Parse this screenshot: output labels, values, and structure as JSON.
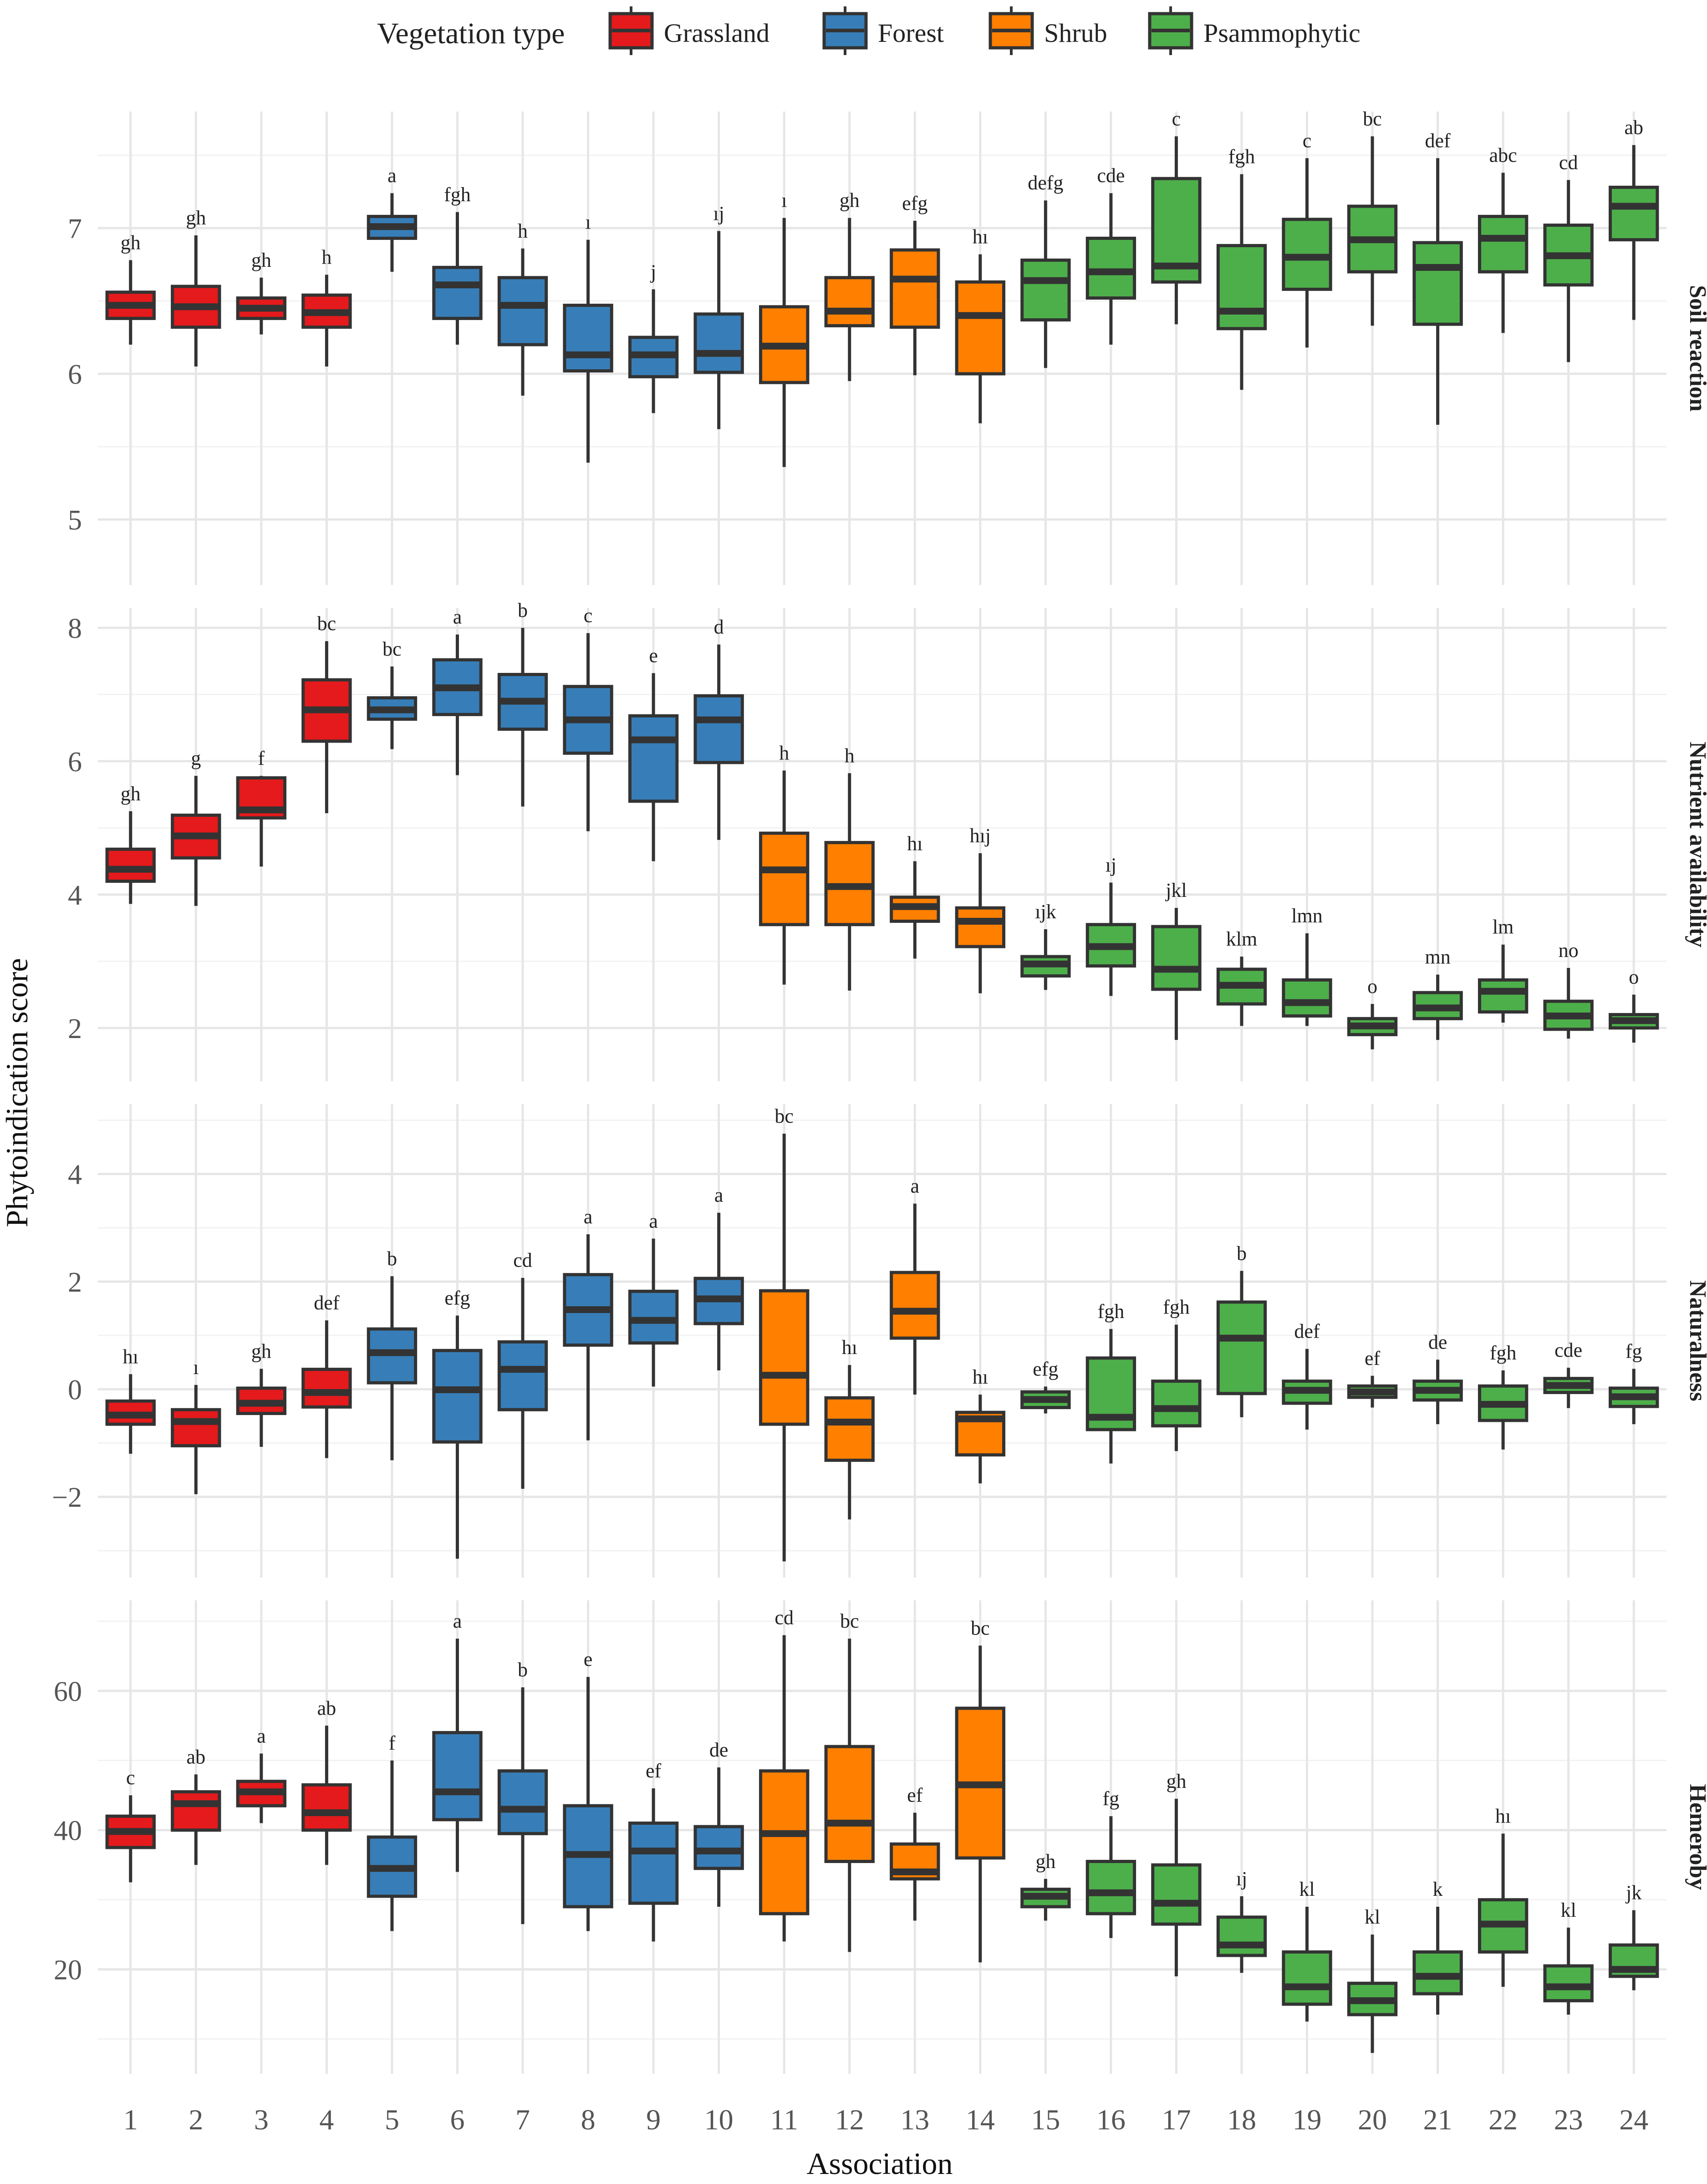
{
  "chart_data": {
    "type": "boxplot",
    "xlabel": "Association",
    "ylabel": "Phytoindication score",
    "categories": [
      "1",
      "2",
      "3",
      "4",
      "5",
      "6",
      "7",
      "8",
      "9",
      "10",
      "11",
      "12",
      "13",
      "14",
      "15",
      "16",
      "17",
      "18",
      "19",
      "20",
      "21",
      "22",
      "23",
      "24"
    ],
    "legend": {
      "title": "Vegetation type",
      "position": "top",
      "entries": [
        {
          "name": "Grassland",
          "color": "#e41a1c"
        },
        {
          "name": "Forest",
          "color": "#377eb8"
        },
        {
          "name": "Shrub",
          "color": "#ff7f00"
        },
        {
          "name": "Psammophytic",
          "color": "#4daf4a"
        }
      ]
    },
    "group_of_category": [
      0,
      0,
      0,
      0,
      1,
      1,
      1,
      1,
      1,
      1,
      2,
      2,
      2,
      2,
      3,
      3,
      3,
      3,
      3,
      3,
      3,
      3,
      3,
      3
    ],
    "panels": [
      {
        "label": "Soil reaction",
        "ylim": [
          4.55,
          7.8
        ],
        "yticks": [
          5,
          6,
          7
        ],
        "boxes": [
          {
            "low": 6.2,
            "q1": 6.38,
            "median": 6.47,
            "q3": 6.56,
            "high": 6.78,
            "letters": "gh"
          },
          {
            "low": 6.05,
            "q1": 6.32,
            "median": 6.46,
            "q3": 6.6,
            "high": 6.95,
            "letters": "gh"
          },
          {
            "low": 6.27,
            "q1": 6.38,
            "median": 6.45,
            "q3": 6.52,
            "high": 6.66,
            "letters": "gh"
          },
          {
            "low": 6.05,
            "q1": 6.32,
            "median": 6.42,
            "q3": 6.54,
            "high": 6.68,
            "letters": "h"
          },
          {
            "low": 6.7,
            "q1": 6.93,
            "median": 7.01,
            "q3": 7.08,
            "high": 7.24,
            "letters": "a"
          },
          {
            "low": 6.2,
            "q1": 6.38,
            "median": 6.61,
            "q3": 6.73,
            "high": 7.11,
            "letters": "fgh"
          },
          {
            "low": 5.85,
            "q1": 6.2,
            "median": 6.47,
            "q3": 6.66,
            "high": 6.86,
            "letters": "h"
          },
          {
            "low": 5.39,
            "q1": 6.02,
            "median": 6.13,
            "q3": 6.47,
            "high": 6.92,
            "letters": "ı"
          },
          {
            "low": 5.73,
            "q1": 5.98,
            "median": 6.13,
            "q3": 6.25,
            "high": 6.58,
            "letters": "j"
          },
          {
            "low": 5.62,
            "q1": 6.01,
            "median": 6.14,
            "q3": 6.41,
            "high": 6.98,
            "letters": "ıj"
          },
          {
            "low": 5.36,
            "q1": 5.94,
            "median": 6.19,
            "q3": 6.46,
            "high": 7.07,
            "letters": "ı"
          },
          {
            "low": 5.95,
            "q1": 6.33,
            "median": 6.43,
            "q3": 6.66,
            "high": 7.07,
            "letters": "gh"
          },
          {
            "low": 5.99,
            "q1": 6.32,
            "median": 6.65,
            "q3": 6.85,
            "high": 7.05,
            "letters": "efg"
          },
          {
            "low": 5.66,
            "q1": 6.0,
            "median": 6.4,
            "q3": 6.63,
            "high": 6.82,
            "letters": "hı"
          },
          {
            "low": 6.04,
            "q1": 6.37,
            "median": 6.64,
            "q3": 6.78,
            "high": 7.19,
            "letters": "defg"
          },
          {
            "low": 6.2,
            "q1": 6.52,
            "median": 6.7,
            "q3": 6.93,
            "high": 7.24,
            "letters": "cde"
          },
          {
            "low": 6.34,
            "q1": 6.63,
            "median": 6.74,
            "q3": 7.34,
            "high": 7.63,
            "letters": "c"
          },
          {
            "low": 5.89,
            "q1": 6.31,
            "median": 6.43,
            "q3": 6.88,
            "high": 7.37,
            "letters": "fgh"
          },
          {
            "low": 6.18,
            "q1": 6.58,
            "median": 6.8,
            "q3": 7.06,
            "high": 7.48,
            "letters": "c"
          },
          {
            "low": 6.33,
            "q1": 6.7,
            "median": 6.92,
            "q3": 7.15,
            "high": 7.63,
            "letters": "bc"
          },
          {
            "low": 5.65,
            "q1": 6.34,
            "median": 6.73,
            "q3": 6.9,
            "high": 7.48,
            "letters": "def"
          },
          {
            "low": 6.28,
            "q1": 6.7,
            "median": 6.93,
            "q3": 7.08,
            "high": 7.38,
            "letters": "abc"
          },
          {
            "low": 6.08,
            "q1": 6.61,
            "median": 6.81,
            "q3": 7.02,
            "high": 7.33,
            "letters": "cd"
          },
          {
            "low": 6.37,
            "q1": 6.92,
            "median": 7.15,
            "q3": 7.28,
            "high": 7.57,
            "letters": "ab"
          }
        ]
      },
      {
        "label": "Nutrient availability",
        "ylim": [
          1.2,
          8.3
        ],
        "yticks": [
          2,
          4,
          6,
          8
        ],
        "boxes": [
          {
            "low": 3.86,
            "q1": 4.2,
            "median": 4.38,
            "q3": 4.68,
            "high": 5.25,
            "letters": "gh"
          },
          {
            "low": 3.83,
            "q1": 4.55,
            "median": 4.88,
            "q3": 5.19,
            "high": 5.78,
            "letters": "g"
          },
          {
            "low": 4.42,
            "q1": 5.15,
            "median": 5.27,
            "q3": 5.75,
            "high": 5.78,
            "letters": "f"
          },
          {
            "low": 5.22,
            "q1": 6.3,
            "median": 6.77,
            "q3": 7.22,
            "high": 7.8,
            "letters": "bc"
          },
          {
            "low": 6.18,
            "q1": 6.63,
            "median": 6.77,
            "q3": 6.95,
            "high": 7.42,
            "letters": "bc"
          },
          {
            "low": 5.79,
            "q1": 6.7,
            "median": 7.1,
            "q3": 7.52,
            "high": 7.9,
            "letters": "a"
          },
          {
            "low": 5.32,
            "q1": 6.48,
            "median": 6.9,
            "q3": 7.3,
            "high": 8.0,
            "letters": "b"
          },
          {
            "low": 4.95,
            "q1": 6.12,
            "median": 6.62,
            "q3": 7.12,
            "high": 7.92,
            "letters": "c"
          },
          {
            "low": 4.5,
            "q1": 5.4,
            "median": 6.32,
            "q3": 6.68,
            "high": 7.32,
            "letters": "e"
          },
          {
            "low": 4.82,
            "q1": 5.98,
            "median": 6.62,
            "q3": 6.98,
            "high": 7.75,
            "letters": "d"
          },
          {
            "low": 2.65,
            "q1": 3.55,
            "median": 4.37,
            "q3": 4.92,
            "high": 5.86,
            "letters": "h"
          },
          {
            "low": 2.56,
            "q1": 3.55,
            "median": 4.12,
            "q3": 4.78,
            "high": 5.82,
            "letters": "h"
          },
          {
            "low": 3.04,
            "q1": 3.6,
            "median": 3.82,
            "q3": 3.96,
            "high": 4.5,
            "letters": "hı"
          },
          {
            "low": 2.52,
            "q1": 3.22,
            "median": 3.6,
            "q3": 3.8,
            "high": 4.62,
            "letters": "hıj"
          },
          {
            "low": 2.57,
            "q1": 2.78,
            "median": 2.96,
            "q3": 3.07,
            "high": 3.48,
            "letters": "ıjk"
          },
          {
            "low": 2.48,
            "q1": 2.93,
            "median": 3.22,
            "q3": 3.55,
            "high": 4.18,
            "letters": "ıj"
          },
          {
            "low": 1.82,
            "q1": 2.58,
            "median": 2.88,
            "q3": 3.52,
            "high": 3.8,
            "letters": "jkl"
          },
          {
            "low": 2.03,
            "q1": 2.36,
            "median": 2.64,
            "q3": 2.88,
            "high": 3.07,
            "letters": "klm"
          },
          {
            "low": 2.03,
            "q1": 2.18,
            "median": 2.38,
            "q3": 2.72,
            "high": 3.42,
            "letters": "lmn"
          },
          {
            "low": 1.68,
            "q1": 1.9,
            "median": 2.03,
            "q3": 2.14,
            "high": 2.36,
            "letters": "o"
          },
          {
            "low": 1.82,
            "q1": 2.14,
            "median": 2.3,
            "q3": 2.53,
            "high": 2.8,
            "letters": "mn"
          },
          {
            "low": 2.08,
            "q1": 2.24,
            "median": 2.55,
            "q3": 2.72,
            "high": 3.25,
            "letters": "lm"
          },
          {
            "low": 1.84,
            "q1": 1.98,
            "median": 2.18,
            "q3": 2.4,
            "high": 2.9,
            "letters": "no"
          },
          {
            "low": 1.78,
            "q1": 2.0,
            "median": 2.11,
            "q3": 2.2,
            "high": 2.5,
            "letters": "o"
          }
        ]
      },
      {
        "label": "Naturalness",
        "ylim": [
          -3.5,
          5.3
        ],
        "yticks": [
          -2,
          0,
          2,
          4
        ],
        "ytick_labels": [
          "−2",
          "0",
          "2",
          "4"
        ],
        "boxes": [
          {
            "low": -1.2,
            "q1": -0.65,
            "median": -0.48,
            "q3": -0.22,
            "high": 0.28,
            "letters": "hı"
          },
          {
            "low": -1.95,
            "q1": -1.05,
            "median": -0.6,
            "q3": -0.38,
            "high": 0.08,
            "letters": "ı"
          },
          {
            "low": -1.07,
            "q1": -0.45,
            "median": -0.26,
            "q3": 0.02,
            "high": 0.38,
            "letters": "gh"
          },
          {
            "low": -1.28,
            "q1": -0.33,
            "median": -0.06,
            "q3": 0.37,
            "high": 1.28,
            "letters": "def"
          },
          {
            "low": -1.32,
            "q1": 0.12,
            "median": 0.68,
            "q3": 1.12,
            "high": 2.1,
            "letters": "b"
          },
          {
            "low": -3.15,
            "q1": -0.98,
            "median": -0.01,
            "q3": 0.72,
            "high": 1.37,
            "letters": "efg"
          },
          {
            "low": -1.85,
            "q1": -0.38,
            "median": 0.37,
            "q3": 0.88,
            "high": 2.07,
            "letters": "cd"
          },
          {
            "low": -0.95,
            "q1": 0.82,
            "median": 1.48,
            "q3": 2.13,
            "high": 2.88,
            "letters": "a"
          },
          {
            "low": 0.05,
            "q1": 0.86,
            "median": 1.28,
            "q3": 1.82,
            "high": 2.8,
            "letters": "a"
          },
          {
            "low": 0.35,
            "q1": 1.22,
            "median": 1.68,
            "q3": 2.06,
            "high": 3.28,
            "letters": "a"
          },
          {
            "low": -3.2,
            "q1": -0.65,
            "median": 0.26,
            "q3": 1.83,
            "high": 4.75,
            "letters": "bc"
          },
          {
            "low": -2.42,
            "q1": -1.32,
            "median": -0.61,
            "q3": -0.16,
            "high": 0.45,
            "letters": "hı"
          },
          {
            "low": -0.1,
            "q1": 0.95,
            "median": 1.45,
            "q3": 2.17,
            "high": 3.45,
            "letters": "a"
          },
          {
            "low": -1.75,
            "q1": -1.22,
            "median": -0.55,
            "q3": -0.43,
            "high": -0.1,
            "letters": "hı"
          },
          {
            "low": -0.45,
            "q1": -0.34,
            "median": -0.19,
            "q3": -0.05,
            "high": 0.05,
            "letters": "efg"
          },
          {
            "low": -1.38,
            "q1": -0.75,
            "median": -0.52,
            "q3": 0.58,
            "high": 1.12,
            "letters": "fgh"
          },
          {
            "low": -1.15,
            "q1": -0.68,
            "median": -0.36,
            "q3": 0.15,
            "high": 1.2,
            "letters": "fgh"
          },
          {
            "low": -0.52,
            "q1": -0.08,
            "median": 0.95,
            "q3": 1.62,
            "high": 2.2,
            "letters": "b"
          },
          {
            "low": -0.75,
            "q1": -0.26,
            "median": -0.02,
            "q3": 0.15,
            "high": 0.75,
            "letters": "def"
          },
          {
            "low": -0.34,
            "q1": -0.15,
            "median": -0.05,
            "q3": 0.06,
            "high": 0.25,
            "letters": "ef"
          },
          {
            "low": -0.65,
            "q1": -0.2,
            "median": -0.02,
            "q3": 0.15,
            "high": 0.55,
            "letters": "de"
          },
          {
            "low": -1.12,
            "q1": -0.58,
            "median": -0.28,
            "q3": 0.06,
            "high": 0.35,
            "letters": "fgh"
          },
          {
            "low": -0.35,
            "q1": -0.06,
            "median": 0.07,
            "q3": 0.2,
            "high": 0.4,
            "letters": "cde"
          },
          {
            "low": -0.65,
            "q1": -0.32,
            "median": -0.14,
            "q3": 0.02,
            "high": 0.38,
            "letters": "fg"
          }
        ]
      },
      {
        "label": "Hemeroby",
        "ylim": [
          5,
          73
        ],
        "yticks": [
          20,
          40,
          60
        ],
        "boxes": [
          {
            "low": 32.5,
            "q1": 37.5,
            "median": 39.8,
            "q3": 42.0,
            "high": 45.0,
            "letters": "c"
          },
          {
            "low": 35.0,
            "q1": 40.0,
            "median": 43.8,
            "q3": 45.5,
            "high": 48.0,
            "letters": "ab"
          },
          {
            "low": 41.0,
            "q1": 43.5,
            "median": 45.5,
            "q3": 47.0,
            "high": 51.0,
            "letters": "a"
          },
          {
            "low": 35.0,
            "q1": 40.0,
            "median": 42.5,
            "q3": 46.5,
            "high": 55.0,
            "letters": "ab"
          },
          {
            "low": 25.5,
            "q1": 30.5,
            "median": 34.5,
            "q3": 39.0,
            "high": 50.0,
            "letters": "f"
          },
          {
            "low": 34.0,
            "q1": 41.5,
            "median": 45.5,
            "q3": 54.0,
            "high": 67.5,
            "letters": "a"
          },
          {
            "low": 26.5,
            "q1": 39.5,
            "median": 43.0,
            "q3": 48.5,
            "high": 60.5,
            "letters": "b"
          },
          {
            "low": 25.5,
            "q1": 29.0,
            "median": 36.5,
            "q3": 43.5,
            "high": 62.0,
            "letters": "e"
          },
          {
            "low": 24.0,
            "q1": 29.5,
            "median": 37.0,
            "q3": 41.0,
            "high": 46.0,
            "letters": "ef"
          },
          {
            "low": 29.0,
            "q1": 34.5,
            "median": 37.0,
            "q3": 40.5,
            "high": 49.0,
            "letters": "de"
          },
          {
            "low": 24.0,
            "q1": 28.0,
            "median": 39.5,
            "q3": 48.5,
            "high": 68.0,
            "letters": "cd"
          },
          {
            "low": 22.5,
            "q1": 35.5,
            "median": 41.0,
            "q3": 52.0,
            "high": 67.5,
            "letters": "bc"
          },
          {
            "low": 27.0,
            "q1": 33.0,
            "median": 34.0,
            "q3": 38.0,
            "high": 42.5,
            "letters": "ef"
          },
          {
            "low": 21.0,
            "q1": 36.0,
            "median": 46.5,
            "q3": 57.5,
            "high": 66.5,
            "letters": "bc"
          },
          {
            "low": 27.0,
            "q1": 29.0,
            "median": 30.5,
            "q3": 31.5,
            "high": 33.0,
            "letters": "gh"
          },
          {
            "low": 24.5,
            "q1": 28.0,
            "median": 31.0,
            "q3": 35.5,
            "high": 42.0,
            "letters": "fg"
          },
          {
            "low": 19.0,
            "q1": 26.5,
            "median": 29.5,
            "q3": 35.0,
            "high": 44.5,
            "letters": "gh"
          },
          {
            "low": 19.5,
            "q1": 22.0,
            "median": 23.5,
            "q3": 27.5,
            "high": 30.5,
            "letters": "ıj"
          },
          {
            "low": 12.5,
            "q1": 15.0,
            "median": 17.5,
            "q3": 22.5,
            "high": 29.0,
            "letters": "kl"
          },
          {
            "low": 8.0,
            "q1": 13.5,
            "median": 15.5,
            "q3": 18.0,
            "high": 25.0,
            "letters": "kl"
          },
          {
            "low": 13.5,
            "q1": 16.5,
            "median": 19.0,
            "q3": 22.5,
            "high": 29.0,
            "letters": "k"
          },
          {
            "low": 17.5,
            "q1": 22.5,
            "median": 26.5,
            "q3": 30.0,
            "high": 39.5,
            "letters": "hı"
          },
          {
            "low": 13.5,
            "q1": 15.5,
            "median": 17.5,
            "q3": 20.5,
            "high": 26.0,
            "letters": "kl"
          },
          {
            "low": 17.0,
            "q1": 19.0,
            "median": 20.0,
            "q3": 23.5,
            "high": 28.5,
            "letters": "jk"
          }
        ]
      }
    ]
  }
}
